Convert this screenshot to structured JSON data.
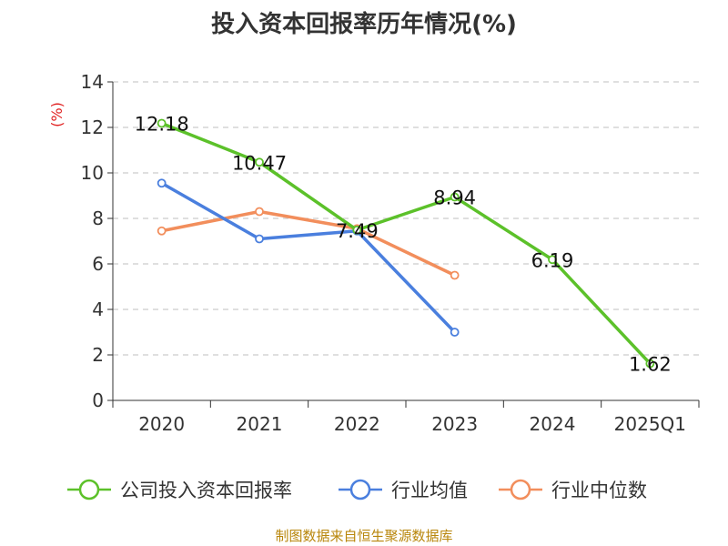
{
  "chart_data": {
    "type": "line",
    "title": "投入资本回报率历年情况(%)",
    "ylabel": "(%)",
    "xlabel": "",
    "categories": [
      "2020",
      "2021",
      "2022",
      "2023",
      "2024",
      "2025Q1"
    ],
    "ylim": [
      0,
      14
    ],
    "yticks": [
      "0",
      "2",
      "4",
      "6",
      "8",
      "10",
      "12",
      "14"
    ],
    "grid": true,
    "legend_position": "bottom",
    "series": [
      {
        "name": "公司投入资本回报率",
        "color": "#5cc12a",
        "values": [
          12.18,
          10.47,
          7.49,
          8.94,
          6.19,
          1.62
        ],
        "labels": [
          "12.18",
          "10.47",
          "7.49",
          "8.94",
          "6.19",
          "1.62"
        ]
      },
      {
        "name": "行业均值",
        "color": "#4a7fde",
        "values": [
          9.55,
          7.1,
          7.45,
          3.0,
          null,
          null
        ]
      },
      {
        "name": "行业中位数",
        "color": "#f28e5c",
        "values": [
          7.45,
          8.3,
          7.55,
          5.5,
          null,
          null
        ]
      }
    ]
  },
  "source_text": "制图数据来自恒生聚源数据库"
}
